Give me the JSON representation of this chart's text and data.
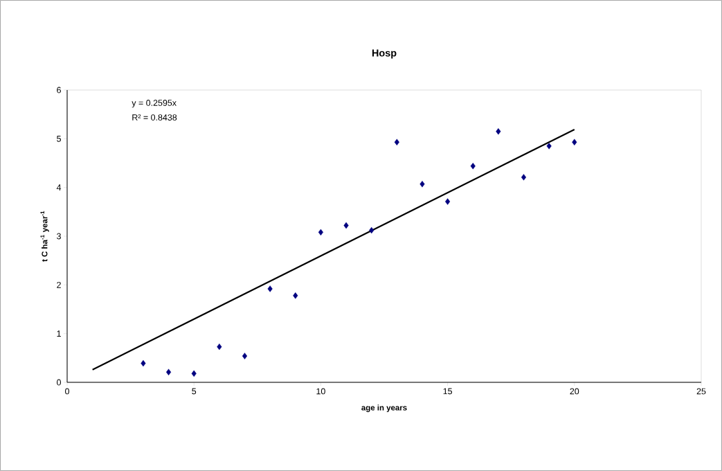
{
  "chart_data": {
    "type": "scatter",
    "title": "Hosp",
    "xlabel": "age in years",
    "ylabel": "t C ha$^{-1}$ year$^{-1}$",
    "annotations": [
      "y = 0.2595x",
      "R² = 0.8438"
    ],
    "series": [
      {
        "color": "#000080",
        "marker": "diamond",
        "x": [
          3,
          4,
          5,
          6,
          7,
          8,
          9,
          10,
          11,
          12,
          13,
          14,
          15,
          16,
          17,
          18,
          19,
          20
        ],
        "values": [
          0.39,
          0.21,
          0.18,
          0.73,
          0.54,
          1.92,
          1.78,
          3.08,
          3.22,
          3.12,
          4.93,
          4.07,
          3.71,
          4.44,
          5.15,
          4.21,
          4.85,
          4.93
        ]
      },
      {
        "type": "line",
        "color": "#000000",
        "marker": "none",
        "line_style": "solid",
        "x": [
          1,
          20
        ],
        "values": [
          0.26,
          5.19
        ]
      }
    ],
    "xlim": [
      0,
      25
    ],
    "ylim": [
      0,
      6
    ],
    "xticks": [
      0,
      5,
      10,
      15,
      20,
      25
    ],
    "yticks": [
      0,
      1,
      2,
      3,
      4,
      5,
      6
    ],
    "grid": false
  }
}
